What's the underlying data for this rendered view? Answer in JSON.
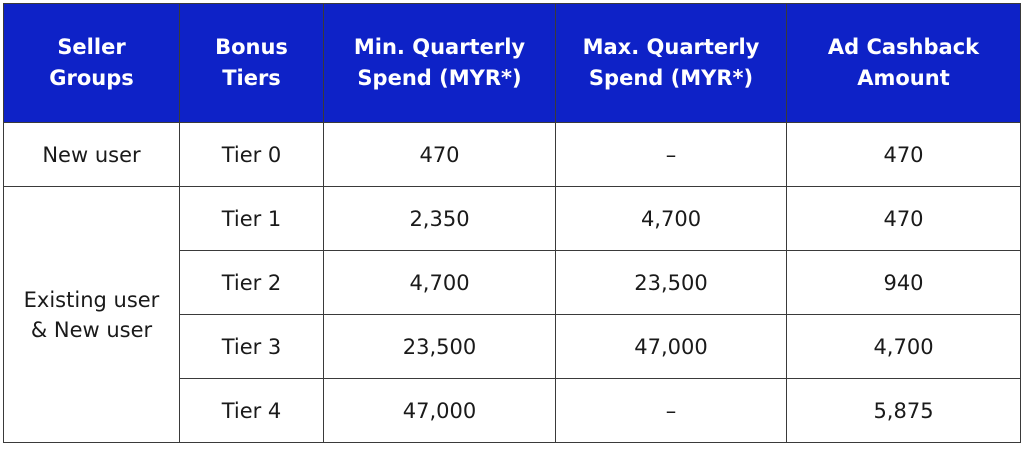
{
  "table": {
    "headers": [
      {
        "line1": "Seller",
        "line2": "Groups"
      },
      {
        "line1": "Bonus",
        "line2": "Tiers"
      },
      {
        "line1": "Min. Quarterly",
        "line2": "Spend (MYR*)"
      },
      {
        "line1": "Max. Quarterly",
        "line2": "Spend (MYR*)"
      },
      {
        "line1": "Ad Cashback",
        "line2": "Amount"
      }
    ],
    "groups": {
      "new_user": "New user",
      "existing_line1": "Existing user",
      "existing_line2": "& New user"
    },
    "rows": [
      {
        "tier": "Tier 0",
        "min": "470",
        "max": "–",
        "cashback": "470"
      },
      {
        "tier": "Tier 1",
        "min": "2,350",
        "max": "4,700",
        "cashback": "470"
      },
      {
        "tier": "Tier 2",
        "min": "4,700",
        "max": "23,500",
        "cashback": "940"
      },
      {
        "tier": "Tier 3",
        "min": "23,500",
        "max": "47,000",
        "cashback": "4,700"
      },
      {
        "tier": "Tier 4",
        "min": "47,000",
        "max": "–",
        "cashback": "5,875"
      }
    ]
  },
  "colors": {
    "header_bg": "#0e22c7",
    "header_text": "#ffffff",
    "border": "#3a3a3a",
    "body_text": "#1a1a1a"
  }
}
